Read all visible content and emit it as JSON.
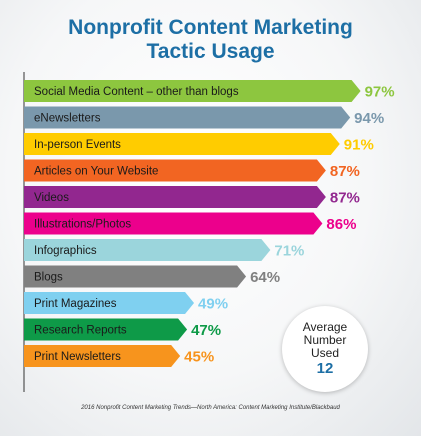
{
  "chart_data": {
    "type": "bar",
    "orientation": "horizontal",
    "title_lines": [
      "Nonprofit Content Marketing",
      "Tactic Usage"
    ],
    "categories": [
      "Social Media Content – other than blogs",
      "eNewsletters",
      "In-person Events",
      "Articles on Your Website",
      "Videos",
      "Illustrations/Photos",
      "Infographics",
      "Blogs",
      "Print Magazines",
      "Research Reports",
      "Print Newsletters"
    ],
    "values": [
      97,
      94,
      91,
      87,
      87,
      86,
      71,
      64,
      49,
      47,
      45
    ],
    "value_labels": [
      "97%",
      "94%",
      "91%",
      "87%",
      "87%",
      "86%",
      "71%",
      "64%",
      "49%",
      "47%",
      "45%"
    ],
    "colors": [
      "#8dc63f",
      "#7a98ac",
      "#ffcc00",
      "#f26522",
      "#92278f",
      "#ec008c",
      "#9bd5dc",
      "#808080",
      "#7fd0f0",
      "#0e9a48",
      "#f7941d"
    ],
    "xlim": [
      0,
      100
    ],
    "grid": false,
    "legend": "none"
  },
  "badge": {
    "label": "Average Number Used",
    "value": "12"
  },
  "source": "2016 Nonprofit Content Marketing Trends—North America: Content Marketing Institute/Blackbaud"
}
